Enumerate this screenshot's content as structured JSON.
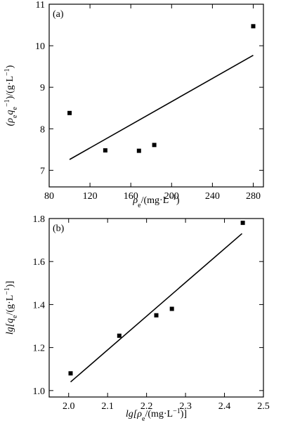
{
  "chart_data": [
    {
      "type": "scatter",
      "panel_label": "(a)",
      "xlabel_parts": [
        "ρ",
        "e",
        "/(mg·L",
        "−1",
        ")"
      ],
      "ylabel_parts": [
        "(ρ",
        "e",
        "q",
        "e",
        "−1",
        ")/(g·L",
        "−1",
        ")"
      ],
      "xlim": [
        80,
        290
      ],
      "ylim": [
        6.6,
        11
      ],
      "xticks": [
        80,
        120,
        160,
        200,
        240,
        280
      ],
      "yticks": [
        7,
        8,
        9,
        10,
        11
      ],
      "points": [
        {
          "x": 100,
          "y": 8.38
        },
        {
          "x": 135,
          "y": 7.48
        },
        {
          "x": 168,
          "y": 7.47
        },
        {
          "x": 183,
          "y": 7.61
        },
        {
          "x": 280,
          "y": 10.47
        }
      ],
      "fit_line": [
        {
          "x": 100,
          "y": 7.26
        },
        {
          "x": 280,
          "y": 9.77
        }
      ],
      "grid": false
    },
    {
      "type": "scatter",
      "panel_label": "(b)",
      "xlabel_parts": [
        "lg[ρ",
        "e",
        "/(mg·L",
        "−1",
        ")]"
      ],
      "ylabel_parts": [
        "lg[q",
        "e",
        "/(g·L",
        "−1",
        ")]"
      ],
      "xlim": [
        1.95,
        2.5
      ],
      "ylim": [
        0.97,
        1.8
      ],
      "xticks": [
        2.0,
        2.1,
        2.2,
        2.3,
        2.4,
        2.5
      ],
      "yticks": [
        1.0,
        1.2,
        1.4,
        1.6,
        1.8
      ],
      "points": [
        {
          "x": 2.005,
          "y": 1.08
        },
        {
          "x": 2.13,
          "y": 1.255
        },
        {
          "x": 2.225,
          "y": 1.35
        },
        {
          "x": 2.265,
          "y": 1.38
        },
        {
          "x": 2.447,
          "y": 1.78
        }
      ],
      "fit_line": [
        {
          "x": 2.005,
          "y": 1.04
        },
        {
          "x": 2.445,
          "y": 1.73
        }
      ],
      "grid": false
    }
  ]
}
